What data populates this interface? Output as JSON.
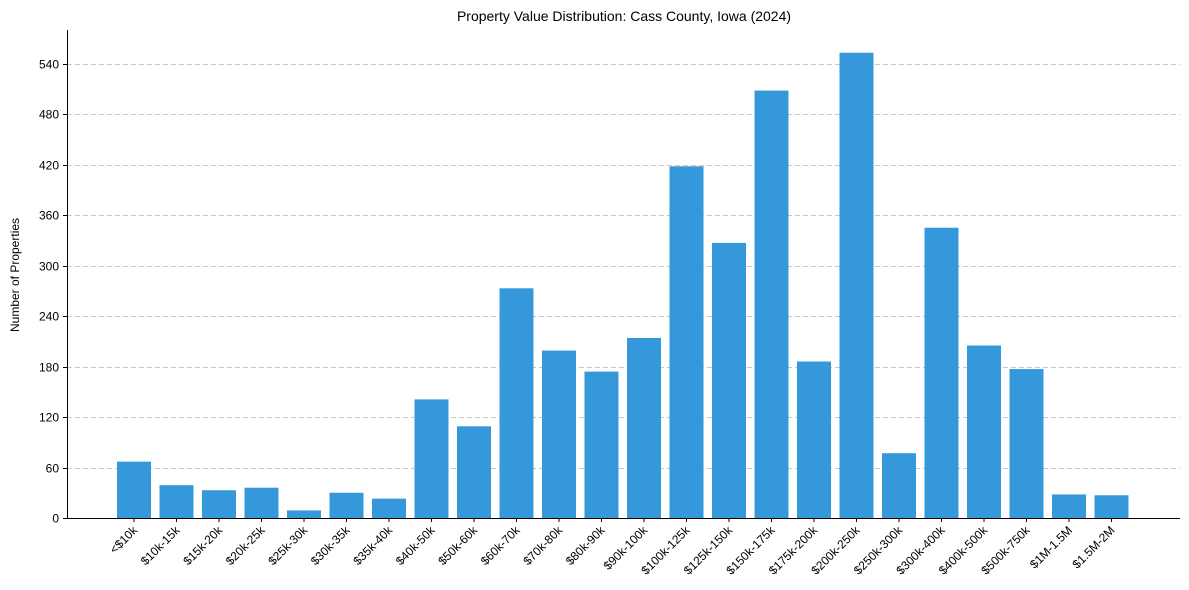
{
  "chart_data": {
    "type": "bar",
    "title": "Property Value Distribution: Cass County, Iowa (2024)",
    "xlabel": "",
    "ylabel": "Number of Properties",
    "categories": [
      "<$10k",
      "$10k-15k",
      "$15k-20k",
      "$20k-25k",
      "$25k-30k",
      "$30k-35k",
      "$35k-40k",
      "$40k-50k",
      "$50k-60k",
      "$60k-70k",
      "$70k-80k",
      "$80k-90k",
      "$90k-100k",
      "$100k-125k",
      "$125k-150k",
      "$150k-175k",
      "$175k-200k",
      "$200k-250k",
      "$250k-300k",
      "$300k-400k",
      "$400k-500k",
      "$500k-750k",
      "$1M-1.5M",
      "$1.5M-2M"
    ],
    "values": [
      67,
      39,
      33,
      36,
      9,
      30,
      23,
      141,
      109,
      273,
      199,
      174,
      214,
      418,
      327,
      508,
      186,
      553,
      77,
      345,
      205,
      177,
      28,
      27
    ],
    "yticks": [
      0,
      60,
      120,
      180,
      240,
      300,
      360,
      420,
      480,
      540
    ],
    "ylim": [
      0,
      580
    ],
    "grid": "y-dashed",
    "bar_color": "#3498db"
  }
}
